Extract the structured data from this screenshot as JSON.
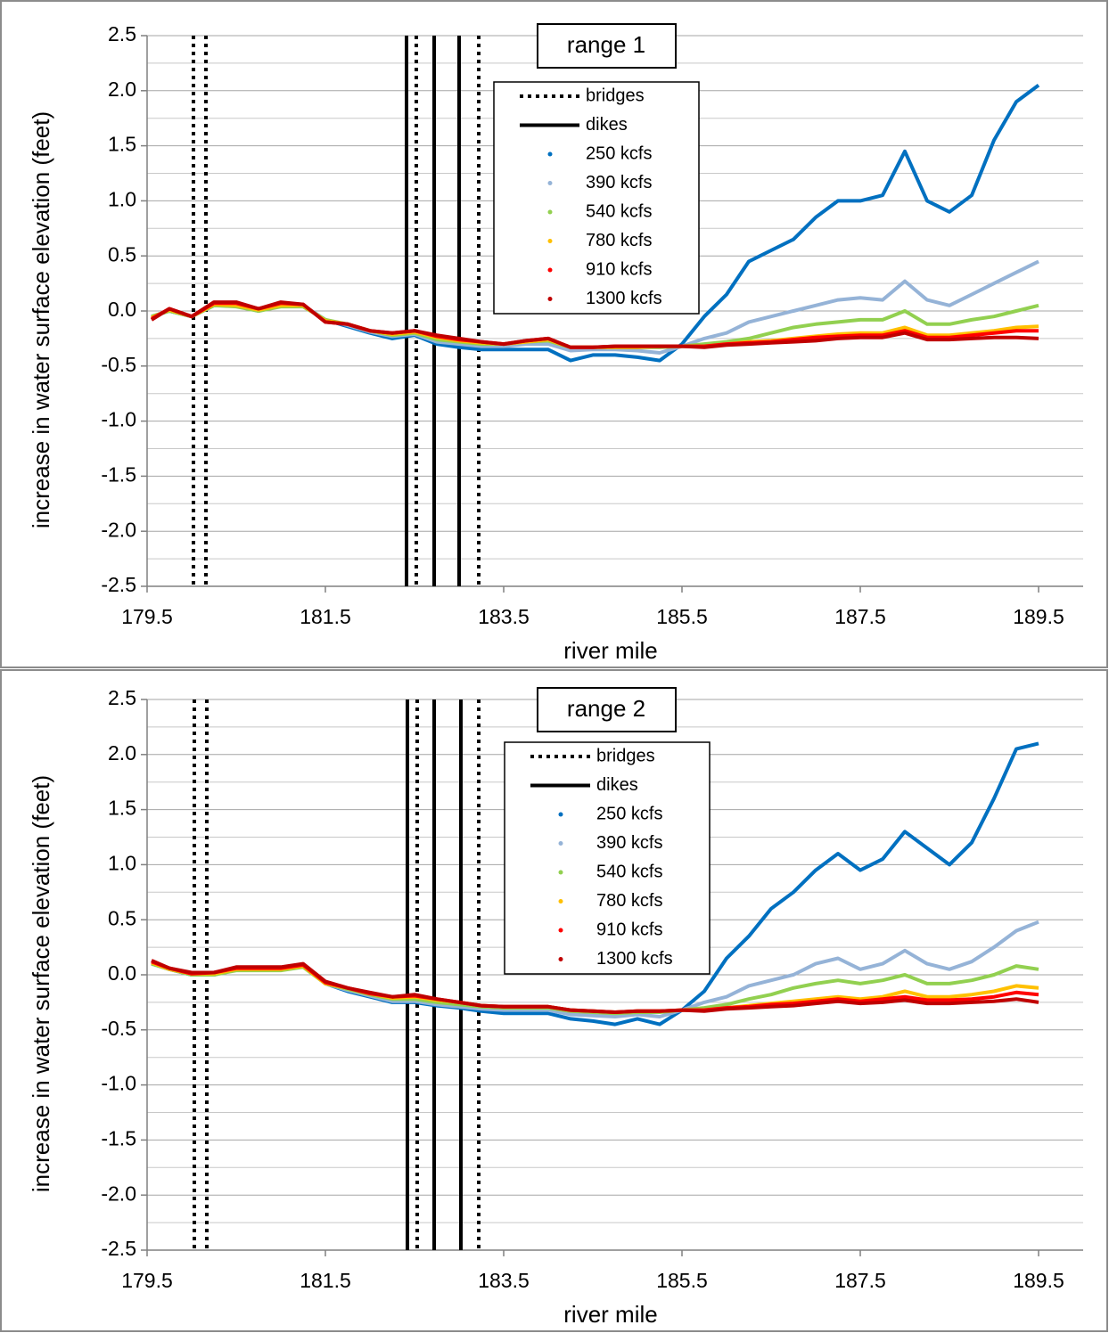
{
  "chart_data": [
    {
      "type": "line",
      "annotation": "range 1",
      "x_label": "river mile",
      "y_label": "increase in water surface elevation (feet)",
      "xlim": [
        179.5,
        190.0
      ],
      "xticks": [
        179.5,
        181.5,
        183.5,
        185.5,
        187.5,
        189.5
      ],
      "ylim": [
        -2.5,
        2.5
      ],
      "yticks": [
        -2.5,
        {
          "value": -2,
          "label": "-2.0"
        },
        -1.5,
        {
          "value": -1,
          "label": "-1.0"
        },
        -0.5,
        {
          "value": 0,
          "label": "0.0"
        },
        0.5,
        {
          "value": 1,
          "label": "1.0"
        },
        1.5,
        {
          "value": 2,
          "label": "2.0"
        },
        2.5
      ],
      "yminor": [
        -2.25,
        -1.75,
        -1.25,
        -0.75,
        -0.25,
        0.25,
        0.75,
        1.25,
        1.75,
        2.25
      ],
      "grid": true,
      "markers": [
        {
          "name": "bridges",
          "style": "dotted",
          "x": [
            180.02,
            180.16,
            182.52,
            183.22
          ]
        },
        {
          "name": "dikes",
          "style": "solid",
          "x": [
            182.41,
            182.72,
            183.0
          ]
        }
      ],
      "x": [
        179.55,
        179.75,
        180.0,
        180.25,
        180.5,
        180.75,
        181.0,
        181.25,
        181.5,
        181.75,
        182.0,
        182.25,
        182.5,
        182.75,
        183.0,
        183.25,
        183.5,
        183.75,
        184.0,
        184.25,
        184.5,
        184.75,
        185.0,
        185.25,
        185.5,
        185.75,
        186.0,
        186.25,
        186.5,
        186.75,
        187.0,
        187.25,
        187.5,
        187.75,
        188.0,
        188.25,
        188.5,
        188.75,
        189.0,
        189.25,
        189.5
      ],
      "series": [
        {
          "name": "250 kcfs",
          "color": "#0070c0",
          "values": [
            -0.05,
            0.0,
            -0.05,
            0.05,
            0.05,
            0.0,
            0.05,
            0.05,
            -0.08,
            -0.14,
            -0.2,
            -0.25,
            -0.22,
            -0.3,
            -0.33,
            -0.35,
            -0.35,
            -0.35,
            -0.35,
            -0.45,
            -0.4,
            -0.4,
            -0.42,
            -0.45,
            -0.3,
            -0.05,
            0.15,
            0.45,
            0.55,
            0.65,
            0.85,
            1.0,
            1.0,
            1.05,
            1.45,
            1.0,
            0.9,
            1.05,
            1.55,
            1.9,
            2.05
          ]
        },
        {
          "name": "390 kcfs",
          "color": "#95b3d7",
          "values": [
            -0.05,
            0.0,
            -0.05,
            0.05,
            0.05,
            0.0,
            0.05,
            0.05,
            -0.08,
            -0.13,
            -0.19,
            -0.23,
            -0.21,
            -0.28,
            -0.3,
            -0.32,
            -0.32,
            -0.3,
            -0.3,
            -0.36,
            -0.35,
            -0.35,
            -0.36,
            -0.38,
            -0.32,
            -0.25,
            -0.2,
            -0.1,
            -0.05,
            0.0,
            0.05,
            0.1,
            0.12,
            0.1,
            0.27,
            0.1,
            0.05,
            0.15,
            0.25,
            0.35,
            0.45
          ]
        },
        {
          "name": "540 kcfs",
          "color": "#92d050",
          "values": [
            -0.05,
            0.0,
            -0.05,
            0.05,
            0.04,
            0.0,
            0.04,
            0.04,
            -0.08,
            -0.12,
            -0.18,
            -0.22,
            -0.2,
            -0.26,
            -0.28,
            -0.3,
            -0.3,
            -0.28,
            -0.27,
            -0.33,
            -0.33,
            -0.33,
            -0.33,
            -0.33,
            -0.32,
            -0.3,
            -0.28,
            -0.25,
            -0.2,
            -0.15,
            -0.12,
            -0.1,
            -0.08,
            -0.08,
            0.0,
            -0.12,
            -0.12,
            -0.08,
            -0.05,
            0.0,
            0.05
          ]
        },
        {
          "name": "780 kcfs",
          "color": "#ffc000",
          "values": [
            -0.06,
            0.01,
            -0.05,
            0.06,
            0.05,
            0.01,
            0.05,
            0.05,
            -0.09,
            -0.12,
            -0.18,
            -0.21,
            -0.19,
            -0.24,
            -0.27,
            -0.29,
            -0.3,
            -0.28,
            -0.26,
            -0.33,
            -0.33,
            -0.33,
            -0.33,
            -0.32,
            -0.32,
            -0.32,
            -0.3,
            -0.28,
            -0.27,
            -0.25,
            -0.23,
            -0.21,
            -0.2,
            -0.2,
            -0.15,
            -0.22,
            -0.22,
            -0.2,
            -0.18,
            -0.15,
            -0.14
          ]
        },
        {
          "name": "910 kcfs",
          "color": "#ff0000",
          "values": [
            -0.07,
            0.02,
            -0.05,
            0.07,
            0.07,
            0.02,
            0.07,
            0.06,
            -0.1,
            -0.12,
            -0.18,
            -0.2,
            -0.18,
            -0.23,
            -0.26,
            -0.28,
            -0.3,
            -0.27,
            -0.25,
            -0.33,
            -0.33,
            -0.32,
            -0.32,
            -0.32,
            -0.32,
            -0.32,
            -0.3,
            -0.29,
            -0.28,
            -0.26,
            -0.24,
            -0.23,
            -0.22,
            -0.22,
            -0.18,
            -0.24,
            -0.24,
            -0.22,
            -0.2,
            -0.18,
            -0.18
          ]
        },
        {
          "name": "1300 kcfs",
          "color": "#c00000",
          "values": [
            -0.08,
            0.02,
            -0.05,
            0.08,
            0.08,
            0.02,
            0.08,
            0.06,
            -0.1,
            -0.12,
            -0.18,
            -0.2,
            -0.18,
            -0.22,
            -0.25,
            -0.28,
            -0.3,
            -0.27,
            -0.25,
            -0.33,
            -0.33,
            -0.32,
            -0.32,
            -0.32,
            -0.32,
            -0.33,
            -0.31,
            -0.3,
            -0.29,
            -0.28,
            -0.27,
            -0.25,
            -0.24,
            -0.24,
            -0.2,
            -0.26,
            -0.26,
            -0.25,
            -0.24,
            -0.24,
            -0.25
          ]
        }
      ]
    },
    {
      "type": "line",
      "annotation": "range 2",
      "x_label": "river mile",
      "y_label": "increase in water surface elevation (feet)",
      "xlim": [
        179.5,
        190.0
      ],
      "xticks": [
        179.5,
        181.5,
        183.5,
        185.5,
        187.5,
        189.5
      ],
      "ylim": [
        -2.5,
        2.5
      ],
      "yticks": [
        -2.5,
        {
          "value": -2,
          "label": "-2.0"
        },
        -1.5,
        {
          "value": -1,
          "label": "-1.0"
        },
        -0.5,
        {
          "value": 0,
          "label": "0.0"
        },
        0.5,
        {
          "value": 1,
          "label": "1.0"
        },
        1.5,
        {
          "value": 2,
          "label": "2.0"
        },
        2.5
      ],
      "yminor": [
        -2.25,
        -1.75,
        -1.25,
        -0.75,
        -0.25,
        0.25,
        0.75,
        1.25,
        1.75,
        2.25
      ],
      "grid": true,
      "markers": [
        {
          "name": "bridges",
          "style": "dotted",
          "x": [
            180.03,
            180.17,
            182.53,
            183.22
          ]
        },
        {
          "name": "dikes",
          "style": "solid",
          "x": [
            182.42,
            182.72,
            183.02
          ]
        }
      ],
      "x": [
        179.55,
        179.75,
        180.0,
        180.25,
        180.5,
        180.75,
        181.0,
        181.25,
        181.5,
        181.75,
        182.0,
        182.25,
        182.5,
        182.75,
        183.0,
        183.25,
        183.5,
        183.75,
        184.0,
        184.25,
        184.5,
        184.75,
        185.0,
        185.25,
        185.5,
        185.75,
        186.0,
        186.25,
        186.5,
        186.75,
        187.0,
        187.25,
        187.5,
        187.75,
        188.0,
        188.25,
        188.5,
        188.75,
        189.0,
        189.25,
        189.5
      ],
      "series": [
        {
          "name": "250 kcfs",
          "color": "#0070c0",
          "values": [
            0.1,
            0.05,
            0.0,
            0.0,
            0.05,
            0.05,
            0.05,
            0.08,
            -0.08,
            -0.15,
            -0.2,
            -0.25,
            -0.25,
            -0.28,
            -0.3,
            -0.33,
            -0.35,
            -0.35,
            -0.35,
            -0.4,
            -0.42,
            -0.45,
            -0.4,
            -0.45,
            -0.32,
            -0.15,
            0.15,
            0.35,
            0.6,
            0.75,
            0.95,
            1.1,
            0.95,
            1.05,
            1.3,
            1.15,
            1.0,
            1.2,
            1.6,
            2.05,
            2.1
          ]
        },
        {
          "name": "390 kcfs",
          "color": "#95b3d7",
          "values": [
            0.1,
            0.05,
            0.0,
            0.0,
            0.05,
            0.05,
            0.05,
            0.08,
            -0.08,
            -0.14,
            -0.19,
            -0.24,
            -0.24,
            -0.27,
            -0.29,
            -0.31,
            -0.32,
            -0.32,
            -0.32,
            -0.36,
            -0.37,
            -0.38,
            -0.36,
            -0.38,
            -0.32,
            -0.25,
            -0.2,
            -0.1,
            -0.05,
            0.0,
            0.1,
            0.15,
            0.05,
            0.1,
            0.22,
            0.1,
            0.05,
            0.12,
            0.25,
            0.4,
            0.48
          ]
        },
        {
          "name": "540 kcfs",
          "color": "#92d050",
          "values": [
            0.1,
            0.05,
            0.0,
            0.0,
            0.04,
            0.04,
            0.04,
            0.07,
            -0.08,
            -0.13,
            -0.18,
            -0.22,
            -0.22,
            -0.25,
            -0.27,
            -0.29,
            -0.3,
            -0.3,
            -0.3,
            -0.33,
            -0.34,
            -0.35,
            -0.34,
            -0.34,
            -0.32,
            -0.3,
            -0.27,
            -0.22,
            -0.18,
            -0.12,
            -0.08,
            -0.05,
            -0.08,
            -0.05,
            0.0,
            -0.08,
            -0.08,
            -0.05,
            0.0,
            0.08,
            0.05
          ]
        },
        {
          "name": "780 kcfs",
          "color": "#ffc000",
          "values": [
            0.11,
            0.05,
            0.01,
            0.01,
            0.05,
            0.05,
            0.05,
            0.08,
            -0.08,
            -0.12,
            -0.17,
            -0.21,
            -0.2,
            -0.23,
            -0.25,
            -0.28,
            -0.29,
            -0.29,
            -0.29,
            -0.32,
            -0.33,
            -0.34,
            -0.33,
            -0.33,
            -0.32,
            -0.32,
            -0.3,
            -0.28,
            -0.26,
            -0.24,
            -0.22,
            -0.2,
            -0.22,
            -0.2,
            -0.15,
            -0.2,
            -0.2,
            -0.18,
            -0.15,
            -0.1,
            -0.12
          ]
        },
        {
          "name": "910 kcfs",
          "color": "#ff0000",
          "values": [
            0.12,
            0.06,
            0.01,
            0.02,
            0.06,
            0.06,
            0.06,
            0.09,
            -0.07,
            -0.12,
            -0.17,
            -0.2,
            -0.19,
            -0.22,
            -0.25,
            -0.28,
            -0.29,
            -0.29,
            -0.29,
            -0.32,
            -0.33,
            -0.34,
            -0.33,
            -0.33,
            -0.32,
            -0.32,
            -0.3,
            -0.29,
            -0.27,
            -0.26,
            -0.24,
            -0.22,
            -0.24,
            -0.22,
            -0.2,
            -0.23,
            -0.23,
            -0.22,
            -0.2,
            -0.16,
            -0.18
          ]
        },
        {
          "name": "1300 kcfs",
          "color": "#c00000",
          "values": [
            0.13,
            0.06,
            0.02,
            0.02,
            0.07,
            0.07,
            0.07,
            0.1,
            -0.06,
            -0.12,
            -0.16,
            -0.2,
            -0.18,
            -0.22,
            -0.25,
            -0.28,
            -0.29,
            -0.29,
            -0.29,
            -0.32,
            -0.33,
            -0.34,
            -0.33,
            -0.33,
            -0.32,
            -0.33,
            -0.31,
            -0.3,
            -0.29,
            -0.28,
            -0.26,
            -0.24,
            -0.26,
            -0.25,
            -0.23,
            -0.26,
            -0.26,
            -0.25,
            -0.24,
            -0.22,
            -0.25
          ]
        }
      ]
    }
  ]
}
